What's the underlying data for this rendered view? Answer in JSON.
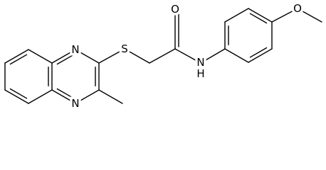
{
  "atoms": [
    "N",
    "N",
    "S",
    "O",
    "N",
    "H",
    "O"
  ]
}
